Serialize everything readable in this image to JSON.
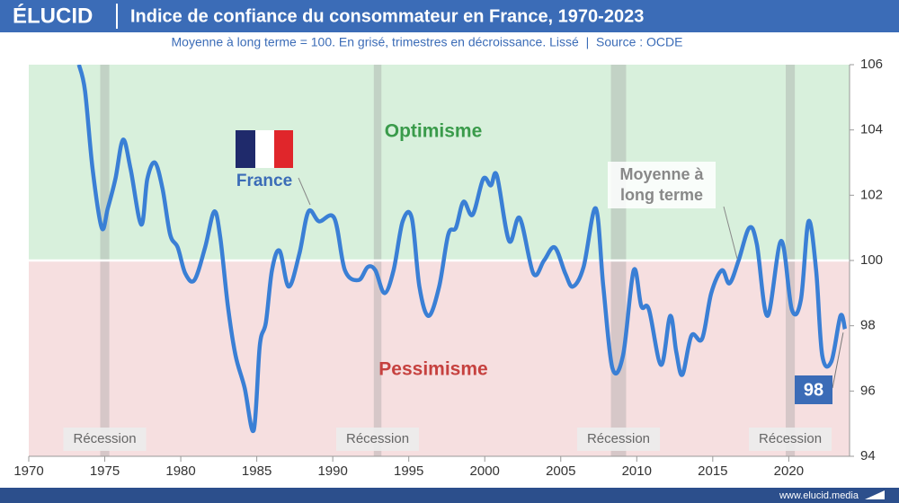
{
  "chart_data": {
    "type": "line",
    "brand": "ÉLUCID",
    "title": "Indice de confiance du consommateur en France, 1970-2023",
    "subtitle": "Moyenne à long terme = 100. En grisé, trimestres en décroissance. Lissé  |  Source : OCDE",
    "footer": "www.elucid.media",
    "x": [
      1973.3,
      1973.7,
      1974.2,
      1974.8,
      1975.2,
      1975.7,
      1976.2,
      1976.7,
      1977.4,
      1977.8,
      1978.3,
      1978.8,
      1979.3,
      1979.8,
      1980.3,
      1980.9,
      1981.6,
      1982.2,
      1982.6,
      1983.1,
      1983.6,
      1984.2,
      1984.8,
      1985.2,
      1985.6,
      1986.0,
      1986.5,
      1987.1,
      1987.8,
      1988.4,
      1989.1,
      1990.1,
      1990.8,
      1991.7,
      1992.3,
      1992.8,
      1993.4,
      1994.0,
      1994.6,
      1995.2,
      1995.7,
      1996.3,
      1997.0,
      1997.6,
      1998.1,
      1998.6,
      1999.2,
      1999.9,
      2000.4,
      2000.8,
      2001.6,
      2002.3,
      2003.2,
      2003.9,
      2004.6,
      2005.3,
      2005.8,
      2006.5,
      2007.3,
      2007.8,
      2008.4,
      2009.1,
      2009.8,
      2010.3,
      2010.8,
      2011.6,
      2012.2,
      2012.6,
      2013.0,
      2013.6,
      2014.3,
      2014.9,
      2015.6,
      2016.1,
      2016.7,
      2017.4,
      2017.9,
      2018.6,
      2019.5,
      2020.2,
      2020.8,
      2021.3,
      2021.8,
      2022.2,
      2022.8,
      2023.4,
      2023.7
    ],
    "series": [
      {
        "name": "France",
        "color": "#3a7fd5",
        "end_label": "98",
        "values": [
          106.0,
          105.2,
          102.8,
          101.0,
          101.6,
          102.5,
          103.7,
          102.8,
          101.1,
          102.5,
          103.0,
          102.2,
          100.8,
          100.4,
          99.6,
          99.4,
          100.4,
          101.5,
          100.7,
          98.6,
          97.1,
          96.1,
          94.8,
          97.4,
          98.1,
          99.7,
          100.3,
          99.2,
          100.2,
          101.5,
          101.2,
          101.3,
          99.7,
          99.4,
          99.8,
          99.7,
          99.0,
          99.7,
          101.2,
          101.3,
          99.2,
          98.3,
          99.2,
          100.8,
          101.0,
          101.8,
          101.4,
          102.5,
          102.3,
          102.6,
          100.6,
          101.3,
          99.6,
          100.0,
          100.4,
          99.6,
          99.2,
          99.8,
          101.6,
          99.2,
          96.7,
          97.1,
          99.7,
          98.6,
          98.5,
          96.8,
          98.3,
          97.2,
          96.5,
          97.7,
          97.6,
          99.0,
          99.7,
          99.3,
          100.0,
          101.0,
          100.5,
          98.3,
          100.6,
          98.5,
          98.8,
          101.2,
          99.7,
          97.1,
          96.9,
          98.3,
          97.9
        ]
      }
    ],
    "mean": 100,
    "mean_label": [
      "Moyenne à",
      "long terme"
    ],
    "above_label": "Optimisme",
    "below_label": "Pessimisme",
    "recessions": [
      {
        "start": 1974.7,
        "end": 1975.3,
        "label": "Récession"
      },
      {
        "start": 1992.7,
        "end": 1993.2,
        "label": "Récession"
      },
      {
        "start": 2008.3,
        "end": 2009.3,
        "label": "Récession"
      },
      {
        "start": 2019.8,
        "end": 2020.4,
        "label": "Récession"
      }
    ],
    "xlim": [
      1970,
      2024
    ],
    "ylim": [
      94,
      106
    ],
    "xticks": [
      1970,
      1975,
      1980,
      1985,
      1990,
      1995,
      2000,
      2005,
      2010,
      2015,
      2020
    ],
    "yticks": [
      94,
      96,
      98,
      100,
      102,
      104,
      106
    ]
  }
}
